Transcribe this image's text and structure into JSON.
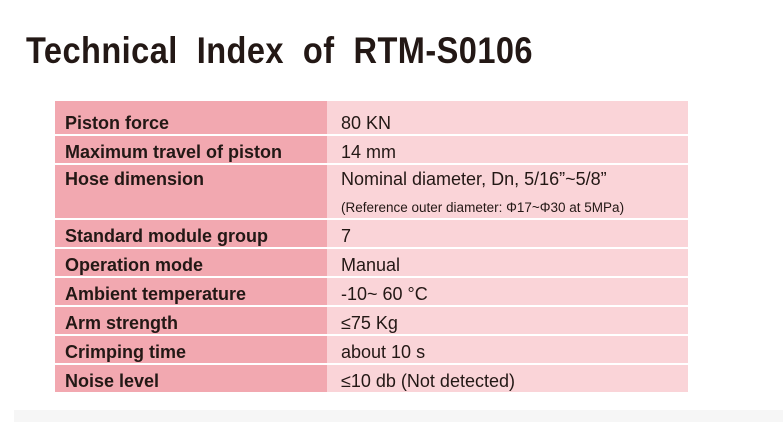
{
  "title": "Technical  Index  of  RTM-S0106",
  "table": {
    "rows": [
      {
        "label": "Piston force",
        "value": "80 KN"
      },
      {
        "label": "Maximum travel of piston",
        "value": "14 mm"
      },
      {
        "label": "Hose dimension",
        "value": "Nominal diameter, Dn, 5/16”~5/8”",
        "note": "(Reference outer diameter: Φ17~Φ30 at 5MPa)"
      },
      {
        "label": "Standard module group",
        "value": "7"
      },
      {
        "label": "Operation mode",
        "value": "Manual"
      },
      {
        "label": "Ambient temperature",
        "value": "-10~ 60 °C"
      },
      {
        "label": "Arm strength",
        "value": "≤75 Kg"
      },
      {
        "label": "Crimping time",
        "value": "about 10 s"
      },
      {
        "label": "Noise level",
        "value": "≤10 db (Not detected)"
      }
    ]
  }
}
